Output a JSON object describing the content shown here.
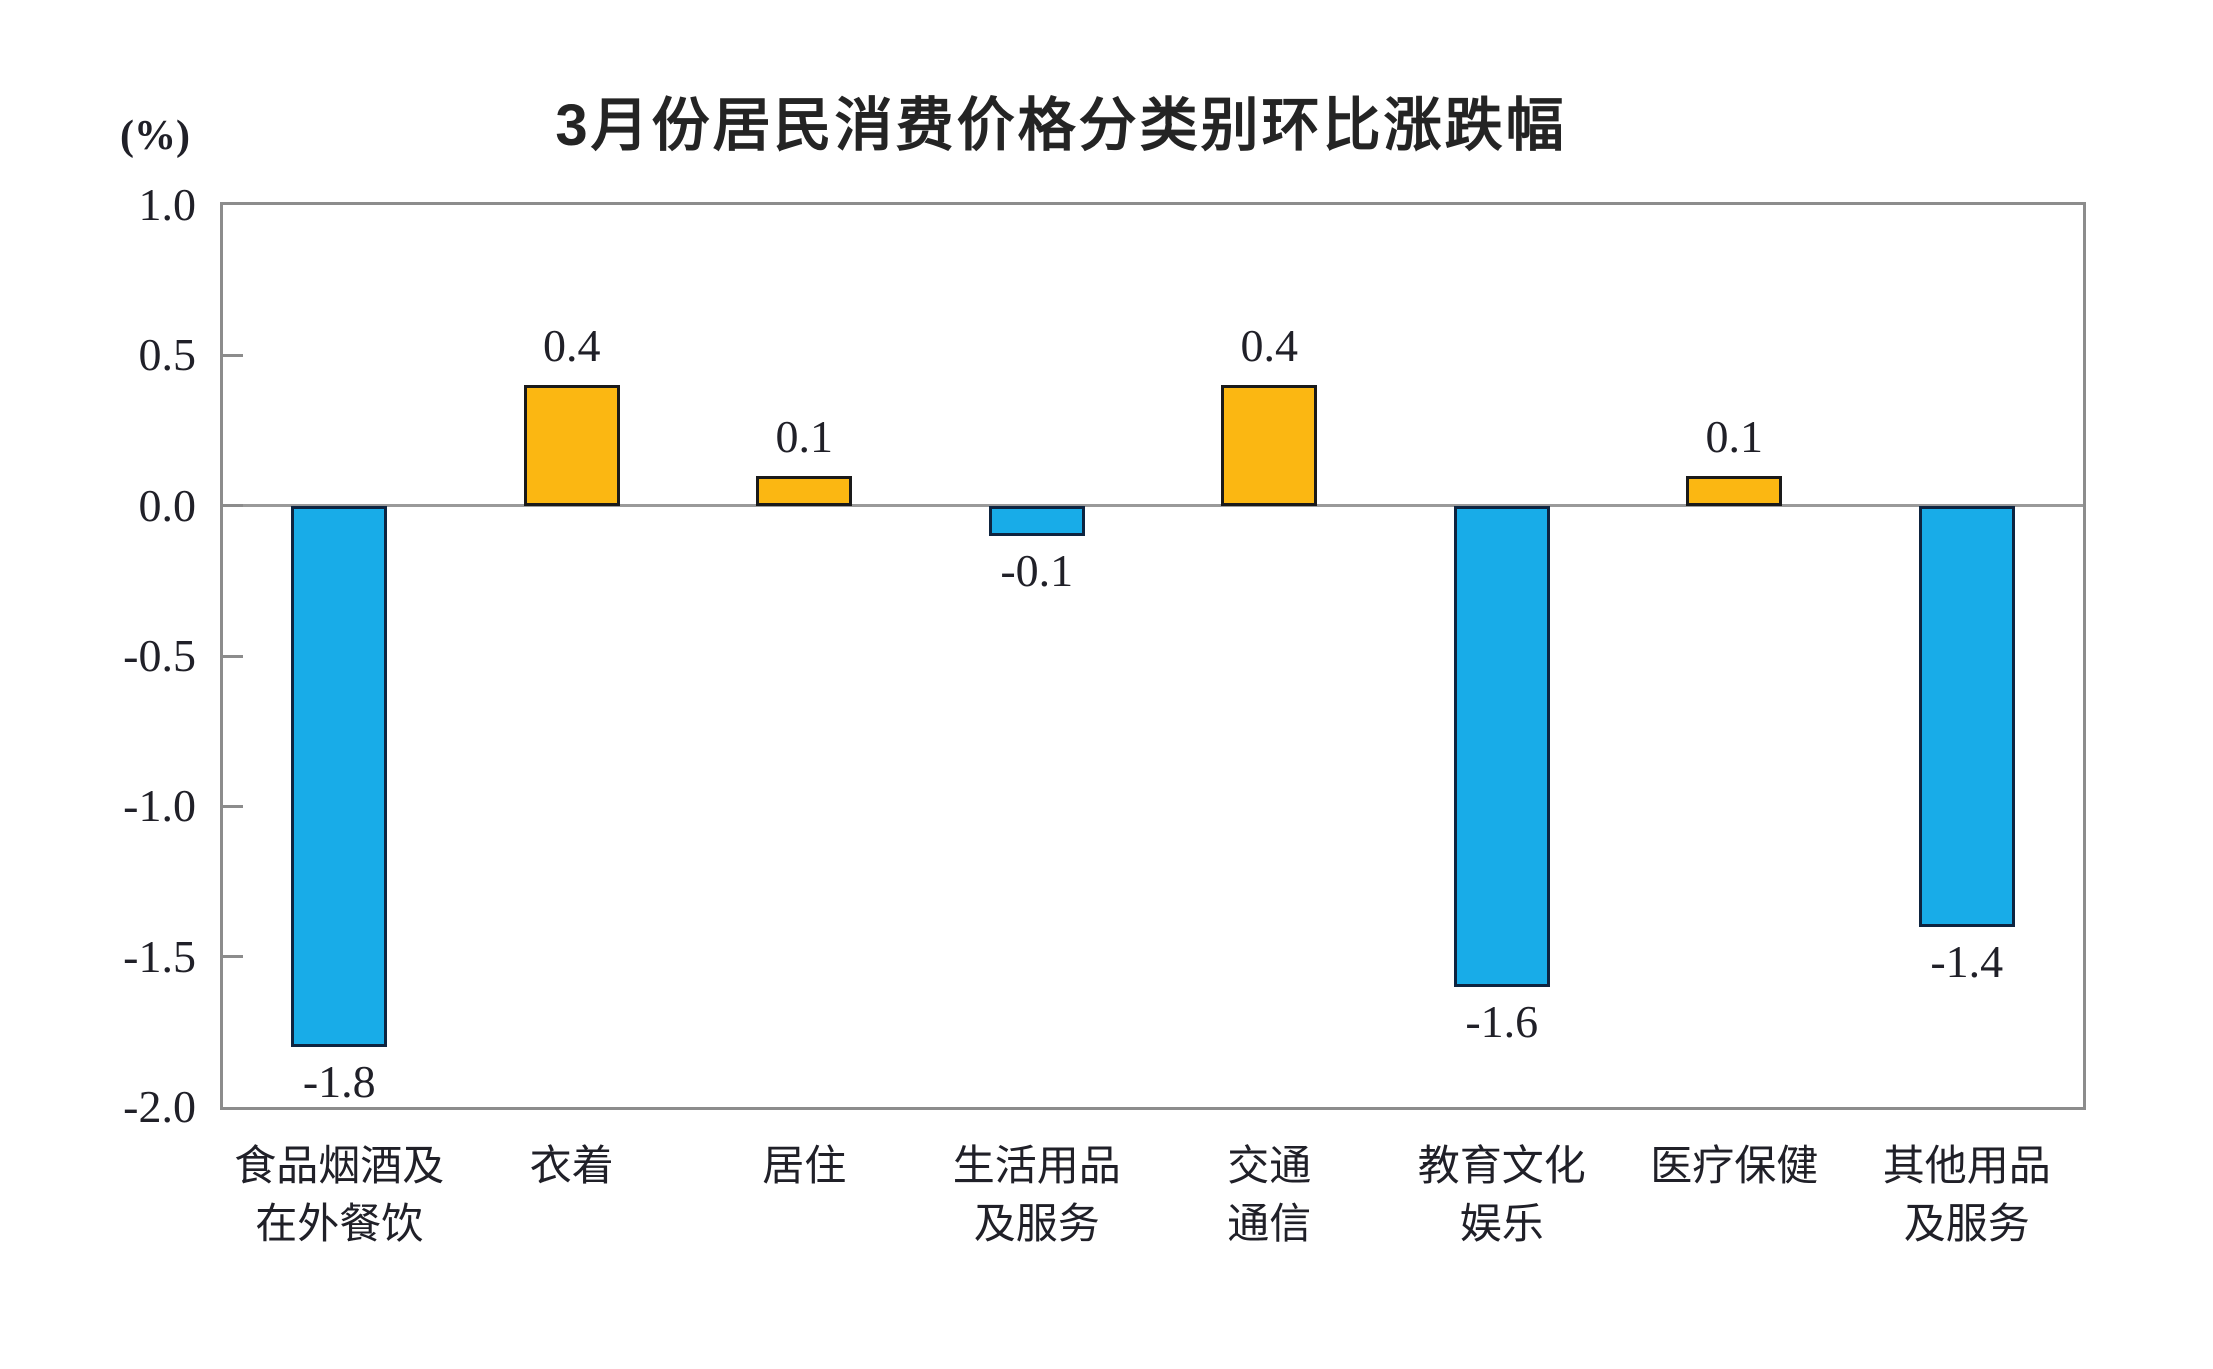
{
  "chart_data": {
    "type": "bar",
    "title": "3月份居民消费价格分类别环比涨跌幅",
    "unit_label": "(%)",
    "categories": [
      "食品烟酒及在外餐饮",
      "衣着",
      "居住",
      "生活用品及服务",
      "交通通信",
      "教育文化娱乐",
      "医疗保健",
      "其他用品及服务"
    ],
    "category_label_lines": [
      [
        "食品烟酒及",
        "在外餐饮"
      ],
      [
        "衣着"
      ],
      [
        "居住"
      ],
      [
        "生活用品",
        "及服务"
      ],
      [
        "交通",
        "通信"
      ],
      [
        "教育文化",
        "娱乐"
      ],
      [
        "医疗保健"
      ],
      [
        "其他用品",
        "及服务"
      ]
    ],
    "values": [
      -1.8,
      0.4,
      0.1,
      -0.1,
      0.4,
      -1.6,
      0.1,
      -1.4
    ],
    "value_labels": [
      "-1.8",
      "0.4",
      "0.1",
      "-0.1",
      "0.4",
      "-1.6",
      "0.1",
      "-1.4"
    ],
    "xlabel": "",
    "ylabel": "(%)",
    "ylim": [
      -2.0,
      1.0
    ],
    "yticks": [
      "1.0",
      "0.5",
      "0.0",
      "-0.5",
      "-1.0",
      "-1.5",
      "-2.0"
    ],
    "grid": false,
    "legend": "none",
    "colors": {
      "positive_fill": "#FBB712",
      "positive_border": "#1A1A1A",
      "negative_fill": "#18ACE8",
      "negative_border": "#0E2440",
      "axis_line": "#8C8C8C",
      "zero_line": "#9A9A9A",
      "text": "#202028"
    }
  }
}
